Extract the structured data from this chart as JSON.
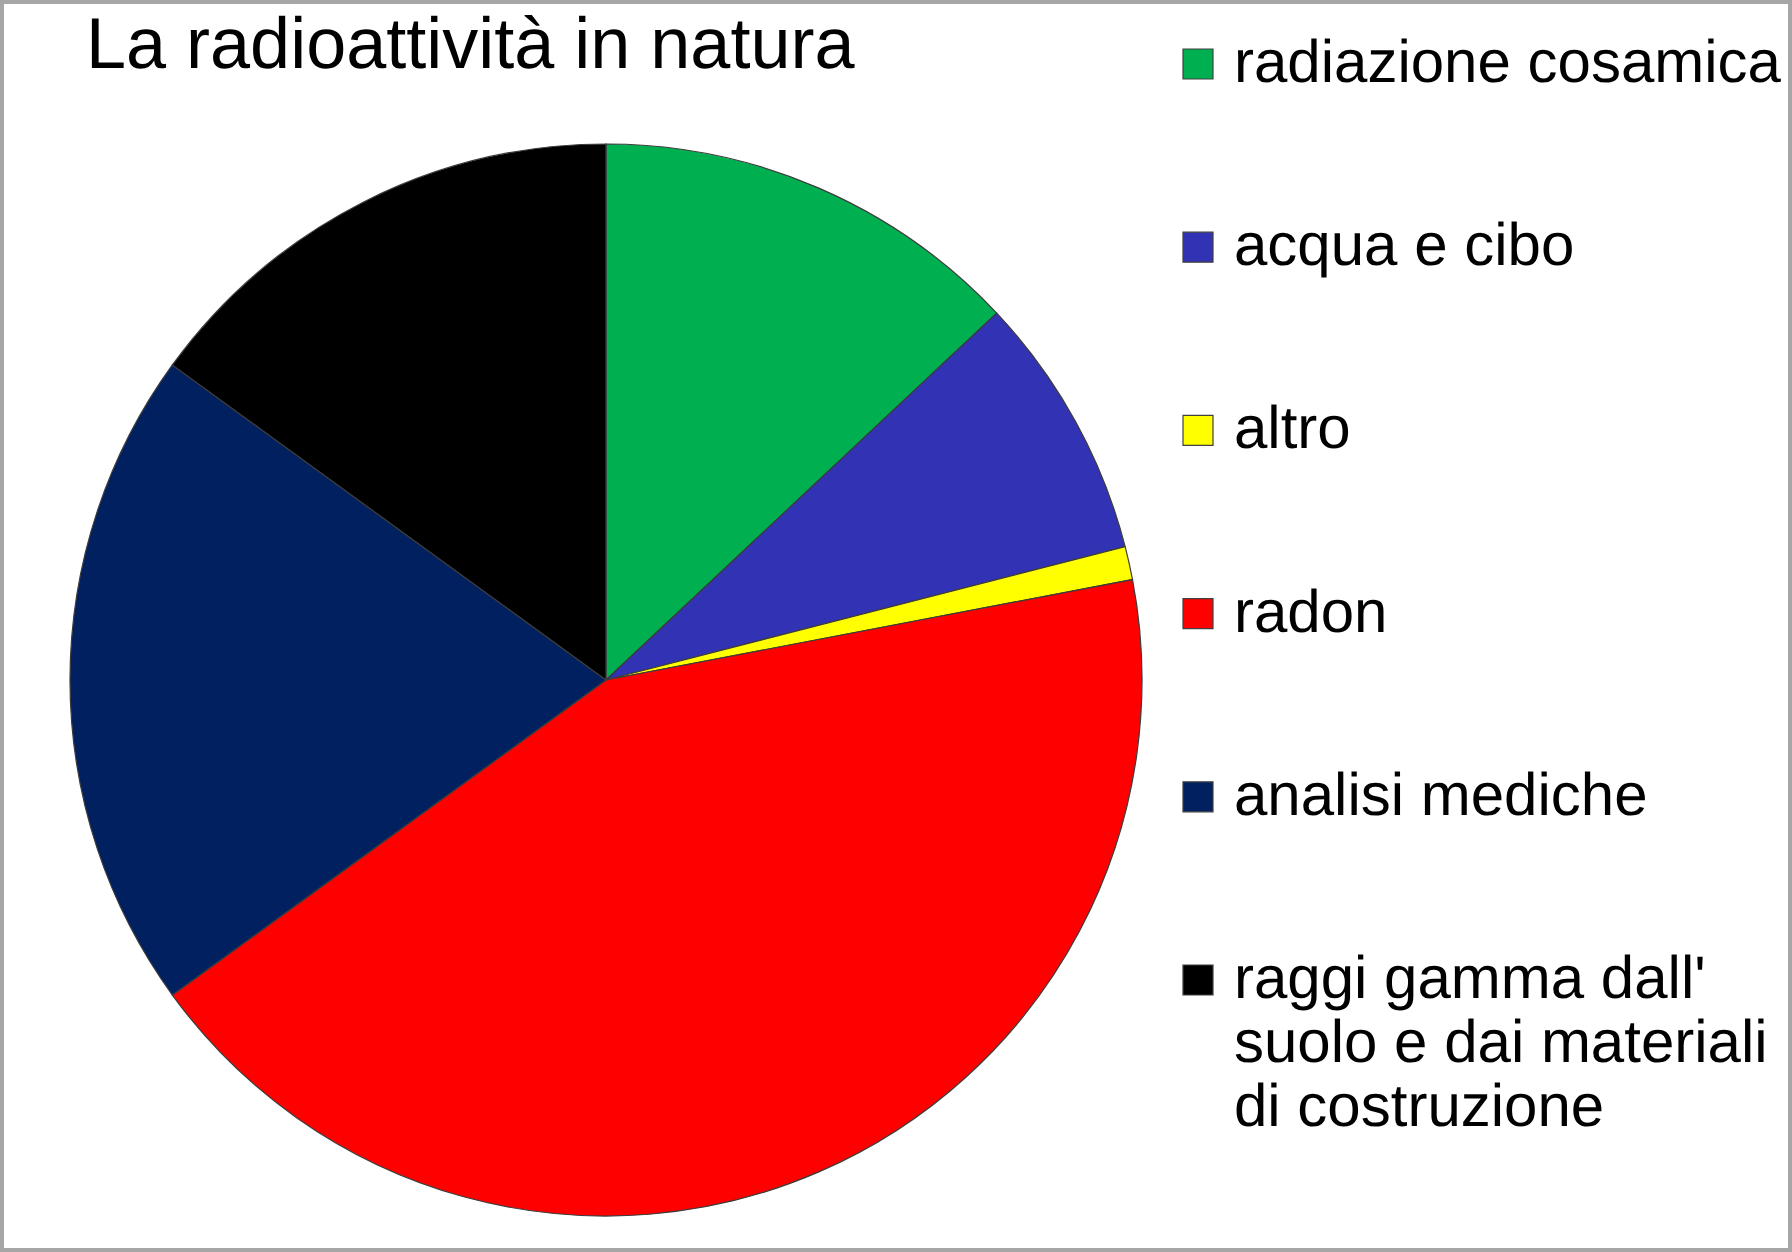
{
  "chart_data": {
    "type": "pie",
    "title": "La radioattività in natura",
    "categories": [
      "radiazione cosamica",
      "acqua e cibo",
      "altro",
      "radon",
      "analisi mediche",
      "raggi gamma dall' suolo e dai materiali di costruzione"
    ],
    "values": [
      13,
      8,
      1,
      43,
      20,
      15
    ],
    "colors": [
      "#00b050",
      "#3232b4",
      "#ffff00",
      "#ff0000",
      "#002060",
      "#000000"
    ],
    "legend": "right"
  }
}
